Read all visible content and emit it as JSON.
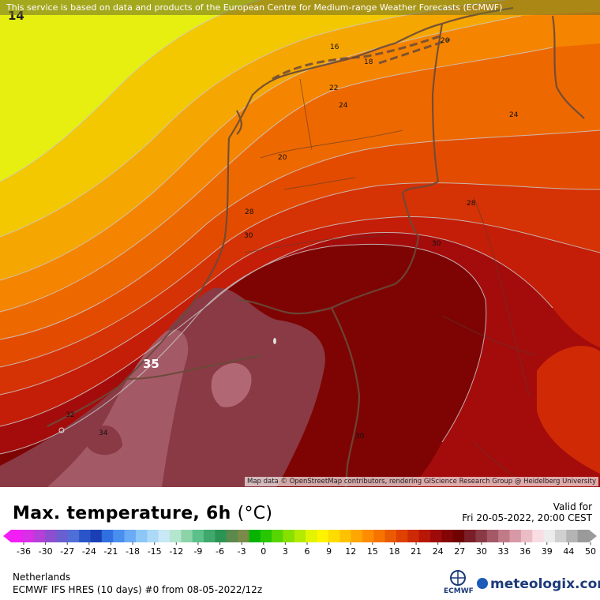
{
  "attribution": "This service is based on data and products of the European Centre for Medium-range Weather Forecasts (ECMWF)",
  "map_credit": "Map data © OpenStreetMap contributors, rendering GIScience Research Group @ Heidelberg University",
  "title": "Max. temperature, 6h",
  "title_unit": "(°C)",
  "valid_label": "Valid for",
  "valid_time": "Fri 20-05-2022, 20:00 CEST",
  "region": "Netherlands",
  "model_run": "ECMWF IFS HRES (10 days) #0 from  08-05-2022/12z",
  "ecmwf_label": "ECMWF",
  "brand": "meteologix.com",
  "contour_labels": {
    "c14": "14",
    "c16": "16",
    "c18": "18",
    "c20a": "20",
    "c20b": "20",
    "c22": "22",
    "c24a": "24",
    "c24b": "24",
    "c28a": "28",
    "c28b": "28",
    "c30a": "30",
    "c30b": "30",
    "c30c": "30",
    "c32": "32",
    "c34": "34",
    "c35": "35"
  },
  "color_scale": {
    "ticks": [
      "-36",
      "-30",
      "-27",
      "-24",
      "-21",
      "-18",
      "-15",
      "-12",
      "-9",
      "-6",
      "-3",
      "0",
      "3",
      "6",
      "9",
      "12",
      "15",
      "18",
      "21",
      "24",
      "27",
      "30",
      "33",
      "36",
      "39",
      "44",
      "50"
    ],
    "colors": [
      "#f21ef5",
      "#d92fe6",
      "#b53fd8",
      "#8c4fd0",
      "#6a5fd0",
      "#4f6fd8",
      "#2a55c8",
      "#1a3fb5",
      "#2f6fe0",
      "#4a8ef0",
      "#6aabf5",
      "#8cc7f7",
      "#acd9f7",
      "#c8e8f5",
      "#b4e6cf",
      "#8cd4a8",
      "#5cc08a",
      "#3fa86c",
      "#2c9453",
      "#5c8a4c",
      "#7a8a4a",
      "#06b400",
      "#27c600",
      "#56d500",
      "#88e000",
      "#b4ea00",
      "#e3f400",
      "#fff300",
      "#ffdc00",
      "#ffc200",
      "#ffa600",
      "#ff8c00",
      "#f67300",
      "#ea5a00",
      "#de4100",
      "#ce2a05",
      "#b81708",
      "#9e0a0a",
      "#840505",
      "#6f0303",
      "#7a1f28",
      "#8a3a44",
      "#a45a66",
      "#c07a88",
      "#d799a6",
      "#ecbcc6",
      "#f8dde3",
      "#ececec",
      "#d0d0d0",
      "#b4b4b4",
      "#9a9a9a"
    ]
  }
}
